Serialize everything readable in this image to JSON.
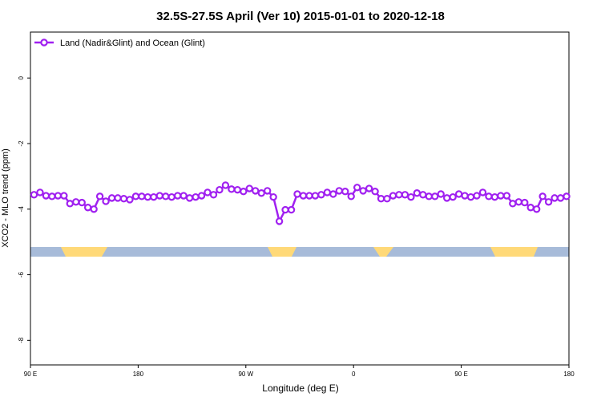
{
  "chart_data": {
    "type": "line",
    "title": "32.5S-27.5S April (Ver 10)   2015-01-01 to 2020-12-18",
    "xlabel": "Longitude (deg E)",
    "ylabel": "XCO2 - MLO trend (ppm)",
    "x": [
      93,
      98,
      103,
      108,
      113,
      118,
      123,
      128,
      133,
      138,
      143,
      148,
      153,
      158,
      163,
      168,
      173,
      178,
      183,
      188,
      193,
      198,
      203,
      208,
      213,
      218,
      223,
      228,
      233,
      238,
      243,
      248,
      253,
      258,
      263,
      268,
      273,
      278,
      283,
      288,
      293,
      298,
      303,
      308,
      313,
      318,
      323,
      328,
      333,
      338,
      343,
      348,
      353,
      358,
      363,
      368,
      373,
      378,
      383,
      388,
      393,
      398,
      403,
      408,
      413,
      418,
      423,
      428,
      433,
      438,
      443,
      448,
      453,
      458,
      463,
      468,
      473,
      478,
      483,
      488,
      493,
      498,
      503,
      508,
      513,
      518,
      523,
      528,
      533,
      538
    ],
    "series": [
      {
        "name": "Land (Nadir&Glint) and Ocean (Glint)",
        "color": "#a020f0",
        "values": [
          -3.56,
          -3.49,
          -3.59,
          -3.61,
          -3.59,
          -3.59,
          -3.83,
          -3.78,
          -3.8,
          -3.95,
          -4.0,
          -3.61,
          -3.76,
          -3.66,
          -3.66,
          -3.68,
          -3.71,
          -3.61,
          -3.61,
          -3.63,
          -3.63,
          -3.59,
          -3.61,
          -3.63,
          -3.59,
          -3.59,
          -3.66,
          -3.63,
          -3.59,
          -3.49,
          -3.56,
          -3.41,
          -3.27,
          -3.39,
          -3.41,
          -3.46,
          -3.37,
          -3.44,
          -3.51,
          -3.44,
          -3.63,
          -4.37,
          -4.02,
          -4.02,
          -3.54,
          -3.59,
          -3.59,
          -3.59,
          -3.56,
          -3.49,
          -3.54,
          -3.44,
          -3.46,
          -3.61,
          -3.34,
          -3.44,
          -3.37,
          -3.46,
          -3.68,
          -3.68,
          -3.59,
          -3.56,
          -3.56,
          -3.63,
          -3.51,
          -3.56,
          -3.61,
          -3.61,
          -3.54,
          -3.66,
          -3.63,
          -3.54,
          -3.59,
          -3.63,
          -3.59,
          -3.49,
          -3.61,
          -3.63,
          -3.59,
          -3.59,
          -3.83,
          -3.78,
          -3.8,
          -3.95,
          -4.0,
          -3.61,
          -3.78,
          -3.66,
          -3.66,
          -3.61
        ]
      }
    ],
    "xlim": [
      90,
      540
    ],
    "xticks": [
      {
        "value": 90,
        "label": "90 E"
      },
      180,
      {
        "value": 270,
        "label": "90 W"
      },
      {
        "value": 360,
        "label": "0"
      },
      {
        "value": 450,
        "label": "90 E"
      },
      {
        "value": 540,
        "label": "180"
      }
    ],
    "ylim": [
      -8.75,
      1.4
    ],
    "yticks": [
      0,
      -2,
      -4,
      -6,
      -8
    ],
    "legend": "top-left",
    "grid": false
  }
}
